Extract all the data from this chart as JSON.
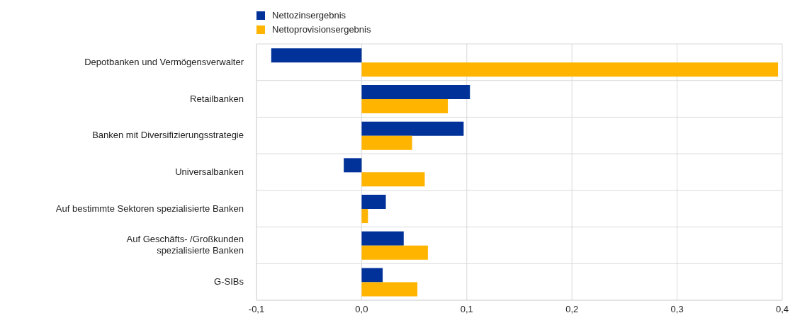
{
  "chart_data": {
    "type": "bar",
    "orientation": "horizontal",
    "categories": [
      "Depotbanken und Vermögensverwalter",
      "Retailbanken",
      "Banken mit Diversifizierungsstrategie",
      "Universalbanken",
      "Auf bestimmte Sektoren spezialisierte Banken",
      "Auf Geschäfts- /Großkunden\nspezialisierte Banken",
      "G-SIBs"
    ],
    "series": [
      {
        "name": "Nettozinsergebnis",
        "color": "#003299",
        "values": [
          -0.086,
          0.103,
          0.097,
          -0.017,
          0.023,
          0.04,
          0.02
        ]
      },
      {
        "name": "Nettoprovisionsergebnis",
        "color": "#ffb400",
        "values": [
          0.396,
          0.082,
          0.048,
          0.06,
          0.006,
          0.063,
          0.053
        ]
      }
    ],
    "xlim": [
      -0.1,
      0.4
    ],
    "xticks": [
      {
        "value": -0.1,
        "label": "-0,1"
      },
      {
        "value": 0,
        "label": "0,0"
      },
      {
        "value": 0.1,
        "label": "0,1"
      },
      {
        "value": 0.2,
        "label": "0,2"
      },
      {
        "value": 0.3,
        "label": "0,3"
      },
      {
        "value": 0.4,
        "label": "0,4"
      }
    ],
    "grid": true,
    "legend": "top"
  }
}
